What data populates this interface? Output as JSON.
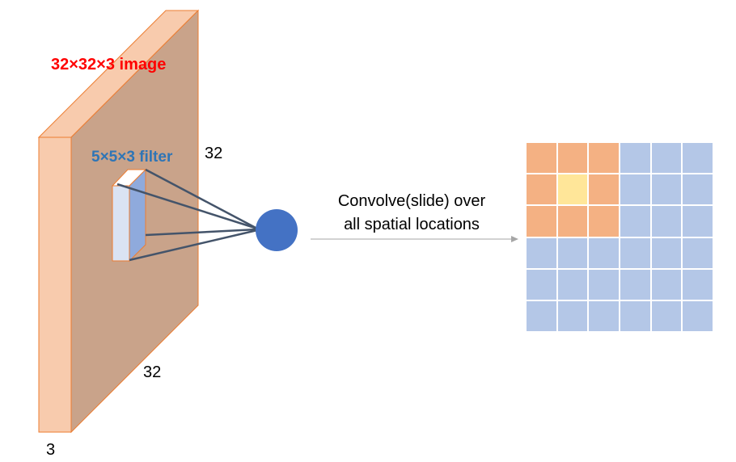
{
  "labels": {
    "image": "32×32×3 image",
    "filter": "5×5×3 filter",
    "height": "32",
    "width": "32",
    "depth": "3",
    "convolve_line1": "Convolve(slide) over",
    "convolve_line2": "all spatial locations"
  },
  "colors": {
    "volume_front": "#f8cbad",
    "volume_face": "#c9a38a",
    "volume_edge": "#ed7d31",
    "filter_front": "#dae3f3",
    "filter_side": "#8faadc",
    "neuron": "#4472c4",
    "connection": "#44546a",
    "arrow": "#a6a6a6",
    "grid_receptive": "#f4b183",
    "grid_center": "#ffe699",
    "grid_other": "#b4c7e7"
  },
  "output_grid": {
    "rows": 6,
    "cols": 6,
    "cells": [
      [
        "receptive",
        "receptive",
        "receptive",
        "other",
        "other",
        "other"
      ],
      [
        "receptive",
        "center",
        "receptive",
        "other",
        "other",
        "other"
      ],
      [
        "receptive",
        "receptive",
        "receptive",
        "other",
        "other",
        "other"
      ],
      [
        "other",
        "other",
        "other",
        "other",
        "other",
        "other"
      ],
      [
        "other",
        "other",
        "other",
        "other",
        "other",
        "other"
      ],
      [
        "other",
        "other",
        "other",
        "other",
        "other",
        "other"
      ]
    ]
  }
}
